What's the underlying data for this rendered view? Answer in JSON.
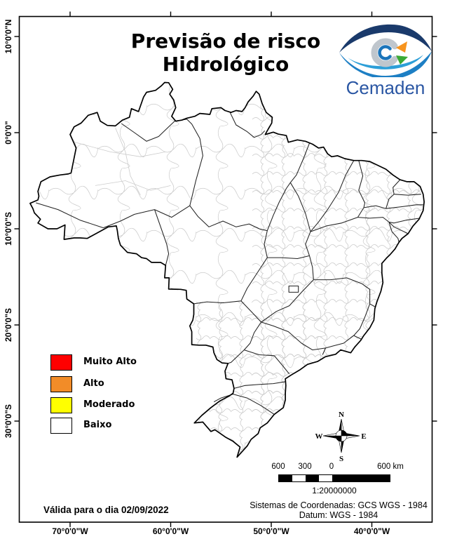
{
  "title": {
    "line1": "Previsão de risco",
    "line2": "Hidrológico"
  },
  "logo": {
    "name": "Cemaden"
  },
  "legend": {
    "items": [
      {
        "label": "Muito Alto",
        "color": "#ff0000"
      },
      {
        "label": "Alto",
        "color": "#f28c28"
      },
      {
        "label": "Moderado",
        "color": "#ffff00"
      },
      {
        "label": "Baixo",
        "color": "#ffffff"
      }
    ]
  },
  "validity_note": "Válida para o dia 02/09/2022",
  "axes": {
    "lat_labels": [
      "10°0'0\"N",
      "0°0'0\"",
      "10°0'0\"S",
      "20°0'0\"S",
      "30°0'0\"S"
    ],
    "lon_labels": [
      "70°0'0\"W",
      "60°0'0\"W",
      "50°0'0\"W",
      "40°0'0\"W"
    ]
  },
  "compass": {
    "north": "N",
    "south": "S",
    "east": "E",
    "west": "W"
  },
  "scale_bar": {
    "labels": [
      "600",
      "300",
      "0",
      "600 km"
    ],
    "ratio": "1:20000000"
  },
  "coordinate_system": {
    "line1": "Sistemas de Coordenadas: GCS WGS - 1984",
    "line2": "Datum: WGS - 1984"
  }
}
